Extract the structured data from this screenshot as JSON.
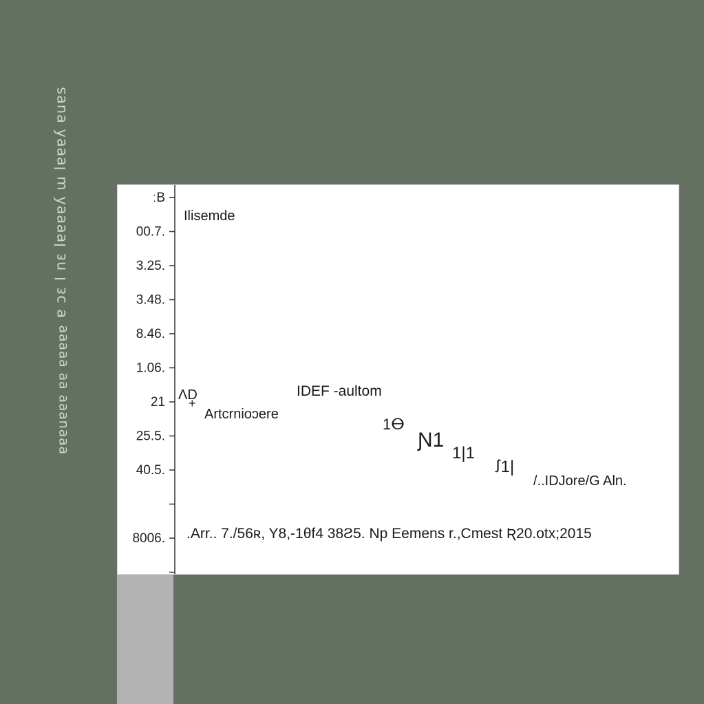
{
  "side_captions": {
    "upper": "ɐ ɔɛ I nɛ lɐɐɐɐʎ ɯ lɐɐɐʎ ɐuɐs",
    "lower": "ɐɐɐuɐɐɐ ɐɐ ɐɐɐɐɐ"
  },
  "chart_data": {
    "type": "line",
    "title": "",
    "xlabel": "",
    "ylabel": "",
    "y_ticks": [
      "ːB",
      "00.7.",
      "3.25.",
      "3.48.",
      "8.46.",
      "1.06.",
      "21",
      "25.5.",
      "40.5.",
      "",
      "8006.",
      ""
    ],
    "legend_label": "Ilisemde",
    "annotations": {
      "series_label": "IDEF -aultom",
      "sub_label": "Artcrnioɔere",
      "corner_mark": "ɅD",
      "end_label": "/..IDJore/G Aln.",
      "bottom_note": ".Arr.. 7./56ʀ, Y8,-1θf4 38Ƨ5. Np Eemens r.,Cmest Ʀ20.otx;2015"
    },
    "peak_labels": [
      "1ⴱ",
      "Ɲ1",
      "1|1",
      "ꭍ1|"
    ],
    "series": [
      {
        "values": []
      }
    ],
    "grid": false
  },
  "colors": {
    "background": "#637062",
    "panel": "#ffffff",
    "axis": "#333333",
    "text": "#1a1a1a",
    "strip": "#b3b3b3"
  }
}
